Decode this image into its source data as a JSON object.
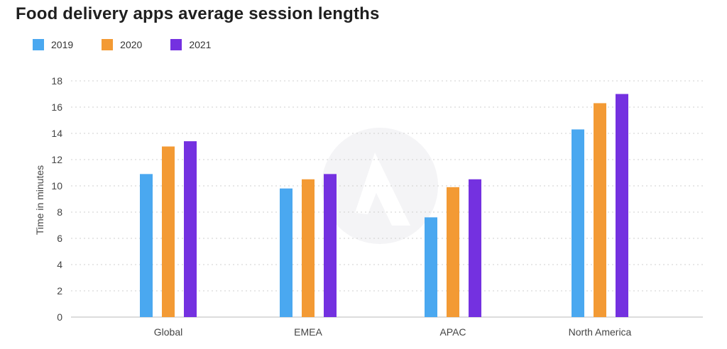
{
  "chart_data": {
    "type": "bar",
    "title": "Food delivery apps average session lengths",
    "ylabel": "Time in minutes",
    "xlabel": "",
    "categories": [
      "Global",
      "EMEA",
      "APAC",
      "North America"
    ],
    "series": [
      {
        "name": "2019",
        "color": "#4aa8f0",
        "values": [
          10.9,
          9.8,
          7.6,
          14.3
        ]
      },
      {
        "name": "2020",
        "color": "#f39a34",
        "values": [
          13.0,
          10.5,
          9.9,
          16.3
        ]
      },
      {
        "name": "2021",
        "color": "#7431e0",
        "values": [
          13.4,
          10.9,
          10.5,
          17.0
        ]
      }
    ],
    "yticks": [
      "0",
      "2",
      "4",
      "6",
      "8",
      "10",
      "12",
      "14",
      "16",
      "18"
    ],
    "ylim": [
      0,
      18
    ],
    "grid": true,
    "legend_position": "top-left"
  }
}
